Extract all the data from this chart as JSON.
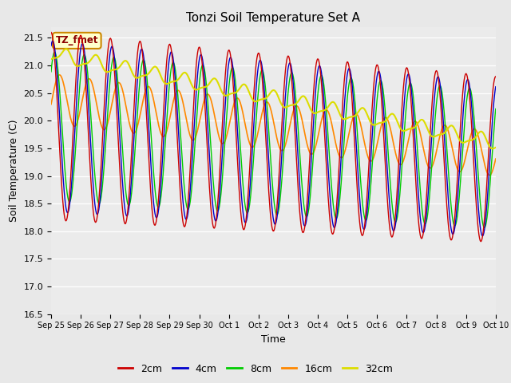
{
  "title": "Tonzi Soil Temperature Set A",
  "xlabel": "Time",
  "ylabel": "Soil Temperature (C)",
  "ylim": [
    16.5,
    21.7
  ],
  "yticks": [
    16.5,
    17.0,
    17.5,
    18.0,
    18.5,
    19.0,
    19.5,
    20.0,
    20.5,
    21.0,
    21.5
  ],
  "xtick_labels": [
    "Sep 25",
    "Sep 26",
    "Sep 27",
    "Sep 28",
    "Sep 29",
    "Sep 30",
    "Oct 1",
    "Oct 2",
    "Oct 3",
    "Oct 4",
    "Oct 5",
    "Oct 6",
    "Oct 7",
    "Oct 8",
    "Oct 9",
    "Oct 10"
  ],
  "colors": {
    "2cm": "#cc0000",
    "4cm": "#0000cc",
    "8cm": "#00cc00",
    "16cm": "#ff8800",
    "32cm": "#dddd00"
  },
  "legend_label": "TZ_fmet",
  "legend_box_facecolor": "#ffffcc",
  "legend_box_edgecolor": "#cc8800",
  "fig_facecolor": "#e8e8e8",
  "ax_facecolor": "#ebebeb"
}
